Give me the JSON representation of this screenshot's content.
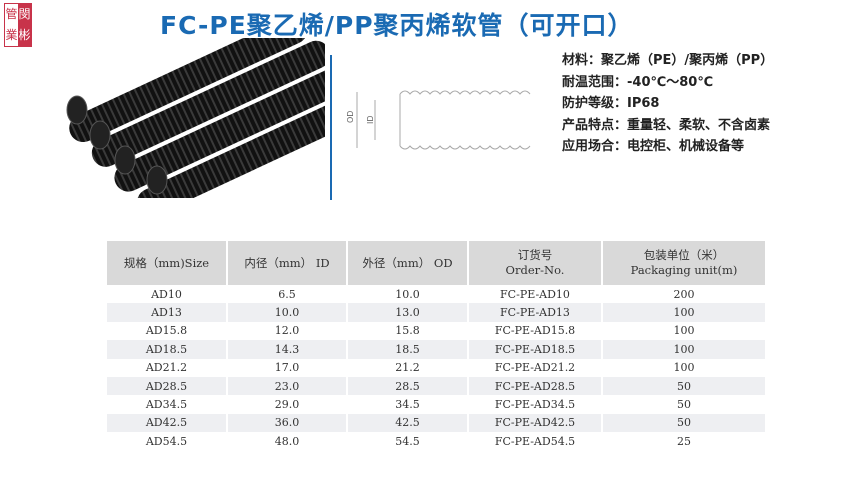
{
  "logo": {
    "chars": [
      "閔",
      "管",
      "彬",
      "業"
    ]
  },
  "title": "FC-PE聚乙烯/PP聚丙烯软管（可开口）",
  "diagram": {
    "od_label": "OD",
    "id_label": "ID"
  },
  "specs": [
    "材料：聚乙烯（PE）/聚丙烯（PP）",
    "耐温范围：-40℃～80℃",
    "防护等级：IP68",
    "产品特点：重量轻、柔软、不含卤素",
    "应用场合：电控柜、机械设备等"
  ],
  "table": {
    "headers": [
      [
        "规格（mm)Size",
        ""
      ],
      [
        "内径（mm） ID",
        ""
      ],
      [
        "外径（mm） OD",
        ""
      ],
      [
        "订货号",
        "Order-No."
      ],
      [
        "包装单位（米）",
        "Packaging unit(m)"
      ]
    ],
    "rows": [
      [
        "AD10",
        "6.5",
        "10.0",
        "FC-PE-AD10",
        "200"
      ],
      [
        "AD13",
        "10.0",
        "13.0",
        "FC-PE-AD13",
        "100"
      ],
      [
        "AD15.8",
        "12.0",
        "15.8",
        "FC-PE-AD15.8",
        "100"
      ],
      [
        "AD18.5",
        "14.3",
        "18.5",
        "FC-PE-AD18.5",
        "100"
      ],
      [
        "AD21.2",
        "17.0",
        "21.2",
        "FC-PE-AD21.2",
        "100"
      ],
      [
        "AD28.5",
        "23.0",
        "28.5",
        "FC-PE-AD28.5",
        "50"
      ],
      [
        "AD34.5",
        "29.0",
        "34.5",
        "FC-PE-AD34.5",
        "50"
      ],
      [
        "AD42.5",
        "36.0",
        "42.5",
        "FC-PE-AD42.5",
        "50"
      ],
      [
        "AD54.5",
        "48.0",
        "54.5",
        "FC-PE-AD54.5",
        "25"
      ]
    ]
  }
}
